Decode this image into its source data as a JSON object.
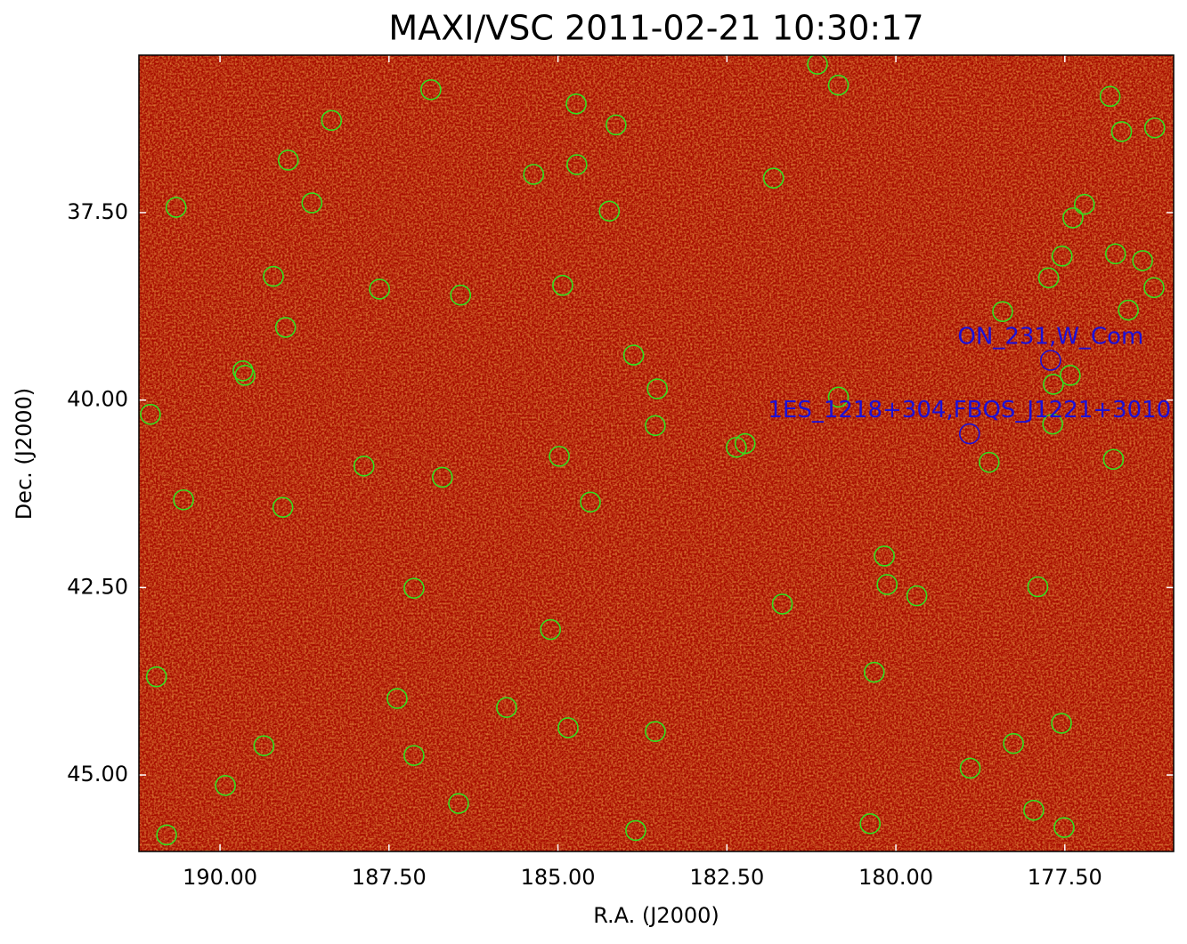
{
  "chart_data": {
    "type": "scatter",
    "title": "MAXI/VSC 2011-02-21 10:30:17",
    "xlabel": "R.A. (J2000)",
    "ylabel": "Dec. (J2000)",
    "background": "#a80c00",
    "xlim": [
      191.2,
      175.89
    ],
    "ylim": [
      46.02,
      35.4
    ],
    "xticks": [
      {
        "value": 190,
        "label": "190.00"
      },
      {
        "value": 187.5,
        "label": "187.50"
      },
      {
        "value": 185,
        "label": "185.00"
      },
      {
        "value": 182.5,
        "label": "182.50"
      },
      {
        "value": 180,
        "label": "180.00"
      },
      {
        "value": 177.5,
        "label": "177.50"
      }
    ],
    "yticks": [
      {
        "value": 37.5,
        "label": "37.50"
      },
      {
        "value": 40,
        "label": "40.00"
      },
      {
        "value": 42.5,
        "label": "42.50"
      },
      {
        "value": 45,
        "label": "45.00"
      }
    ],
    "series": [
      {
        "color": "#33e01e",
        "x": [
          181.16,
          180.85,
          186.88,
          176.83,
          184.73,
          188.35,
          184.14,
          176.66,
          176.17,
          188.99,
          184.72,
          185.36,
          181.81,
          190.65,
          188.64,
          184.24,
          177.21,
          177.38,
          177.54,
          176.75,
          176.35,
          189.21,
          187.64,
          186.44,
          184.93,
          177.74,
          176.18,
          176.56,
          178.42,
          189.03,
          183.88,
          189.66,
          189.63,
          177.42,
          177.67,
          183.53,
          180.85,
          191.03,
          177.68,
          183.56,
          182.23,
          182.36,
          184.98,
          176.78,
          187.87,
          178.62,
          186.71,
          190.54,
          184.52,
          189.07,
          180.17,
          180.13,
          177.9,
          187.13,
          179.69,
          181.68,
          185.11,
          180.32,
          190.94,
          187.38,
          185.76,
          177.55,
          184.85,
          183.56,
          178.26,
          189.35,
          187.13,
          178.9,
          189.92,
          186.47,
          177.96,
          180.38,
          177.51,
          183.85,
          190.79
        ],
        "y": [
          35.52,
          35.8,
          35.86,
          35.95,
          36.05,
          36.27,
          36.33,
          36.42,
          36.37,
          36.8,
          36.86,
          36.99,
          37.04,
          37.43,
          37.37,
          37.48,
          37.39,
          37.57,
          38.08,
          38.05,
          38.14,
          38.35,
          38.52,
          38.6,
          38.47,
          38.37,
          38.5,
          38.8,
          38.82,
          39.03,
          39.4,
          39.61,
          39.67,
          39.67,
          39.79,
          39.85,
          39.96,
          40.19,
          40.32,
          40.34,
          40.58,
          40.63,
          40.75,
          40.79,
          40.88,
          40.83,
          41.03,
          41.33,
          41.36,
          41.43,
          42.08,
          42.46,
          42.49,
          42.51,
          42.61,
          42.72,
          43.06,
          43.63,
          43.69,
          43.98,
          44.1,
          44.31,
          44.37,
          44.42,
          44.58,
          44.61,
          44.74,
          44.91,
          45.14,
          45.38,
          45.47,
          45.65,
          45.7,
          45.74,
          45.8
        ]
      }
    ],
    "annotations": {
      "color": "#1c10d8",
      "items": [
        {
          "text": "ON_231,W_Com",
          "x": 177.71,
          "y": 39.47
        },
        {
          "text": "1ES_1218+304,FBQS_J1221+3010",
          "x": 178.91,
          "y": 40.45
        }
      ]
    }
  }
}
